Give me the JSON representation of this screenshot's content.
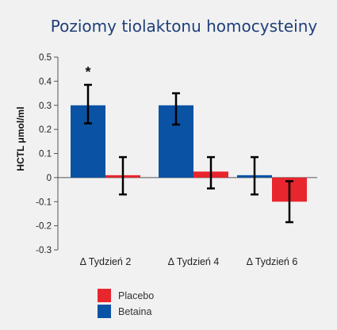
{
  "chart_data": {
    "type": "bar",
    "title": "Poziomy tiolaktonu homocysteiny",
    "ylabel": "HCTL μmol/ml",
    "xlabel": "",
    "ylim": [
      -0.3,
      0.5
    ],
    "yticks": [
      "0.5",
      "0.4",
      "0.3",
      "0.2",
      "0.1",
      "0",
      "-0.1",
      "-0.2",
      "-0.3"
    ],
    "ytick_values": [
      0.5,
      0.4,
      0.3,
      0.2,
      0.1,
      0,
      -0.1,
      -0.2,
      -0.3
    ],
    "categories": [
      "Δ Tydzień 2",
      "Δ Tydzień 4",
      "Δ Tydzień 6"
    ],
    "series": [
      {
        "name": "Betaina",
        "color": "#0a52a3",
        "values": [
          0.3,
          0.3,
          0.01
        ],
        "err_low": [
          0.225,
          0.22,
          -0.07
        ],
        "err_high": [
          0.385,
          0.35,
          0.085
        ]
      },
      {
        "name": "Placebo",
        "color": "#e8262d",
        "values": [
          0.01,
          0.025,
          -0.1
        ],
        "err_low": [
          -0.07,
          -0.045,
          -0.185
        ],
        "err_high": [
          0.085,
          0.085,
          -0.015
        ]
      }
    ],
    "legend_order": [
      "Placebo",
      "Betaina"
    ],
    "legend_position": "bottom-left",
    "annotations": [
      {
        "text": "*",
        "category": 0,
        "series": "Betaina"
      }
    ],
    "grid": false
  }
}
